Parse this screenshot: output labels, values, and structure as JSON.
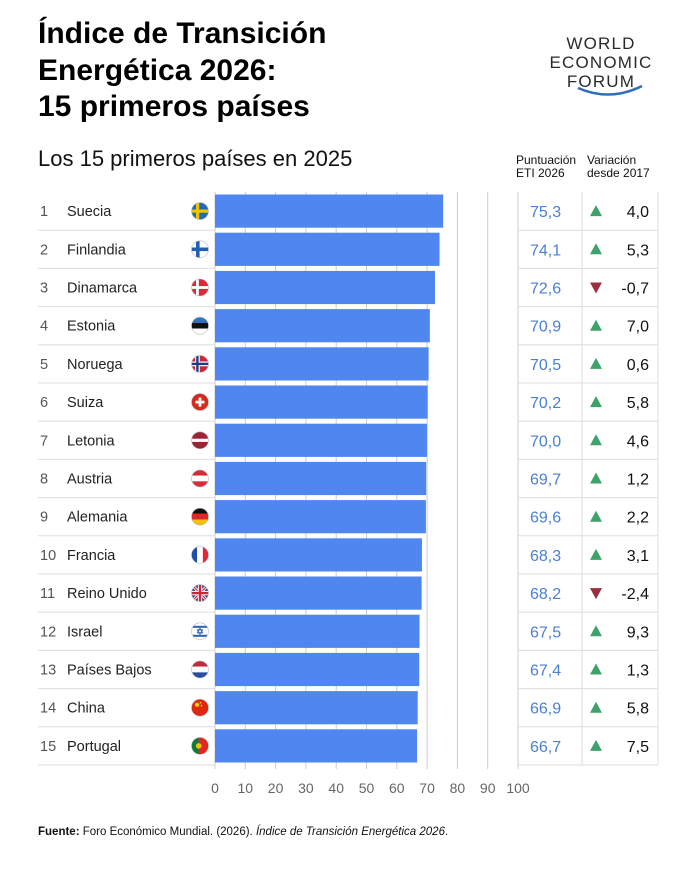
{
  "header": {
    "title_lines": [
      "Índice de Transición",
      "Energética 2026:",
      "15 primeros países"
    ],
    "subtitle": "Los 15 primeros países en 2025",
    "col_score": [
      "Puntuación",
      "ETI 2026"
    ],
    "col_change": [
      "Variación",
      "desde 2017"
    ]
  },
  "logo": {
    "lines": [
      "WORLD",
      "ECONOMIC",
      "FORUM"
    ]
  },
  "footer": {
    "source_label": "Fuente:",
    "source_text": " Foro Económico Mundial. (2026). ",
    "source_title": "Índice de Transición Energética 2026",
    "source_end": "."
  },
  "colors": {
    "bar": "#4f86f0",
    "score_text": "#4a7fd4",
    "up": "#3ea36a",
    "down": "#9a2f3e",
    "grid": "#cccccc"
  },
  "chart_data": {
    "type": "bar",
    "orientation": "horizontal",
    "categories": [
      "Suecia",
      "Finlandia",
      "Dinamarca",
      "Estonia",
      "Noruega",
      "Suiza",
      "Letonia",
      "Austria",
      "Alemania",
      "Francia",
      "Reino Unido",
      "Israel",
      "Países Bajos",
      "China",
      "Portugal"
    ],
    "ranks": [
      "1",
      "2",
      "3",
      "4",
      "5",
      "6",
      "7",
      "8",
      "9",
      "10",
      "11",
      "12",
      "13",
      "14",
      "15"
    ],
    "values": [
      75.3,
      74.1,
      72.6,
      70.9,
      70.5,
      70.2,
      70.0,
      69.7,
      69.6,
      68.3,
      68.2,
      67.5,
      67.4,
      66.9,
      66.7
    ],
    "score_labels": [
      "75,3",
      "74,1",
      "72,6",
      "70,9",
      "70,5",
      "70,2",
      "70,0",
      "69,7",
      "69,6",
      "68,3",
      "68,2",
      "67,5",
      "67,4",
      "66,9",
      "66,7"
    ],
    "change_values": [
      4.0,
      5.3,
      -0.7,
      7.0,
      0.6,
      5.8,
      4.6,
      1.2,
      2.2,
      3.1,
      -2.4,
      9.3,
      1.3,
      5.8,
      7.5
    ],
    "change_labels": [
      "4,0",
      "5,3",
      "-0,7",
      "7,0",
      "0,6",
      "5,8",
      "4,6",
      "1,2",
      "2,2",
      "3,1",
      "-2,4",
      "9,3",
      "1,3",
      "5,8",
      "7,5"
    ],
    "flags": [
      "sweden-flag",
      "finland-flag",
      "denmark-flag",
      "estonia-flag",
      "norway-flag",
      "switzerland-flag",
      "latvia-flag",
      "austria-flag",
      "germany-flag",
      "france-flag",
      "uk-flag",
      "israel-flag",
      "netherlands-flag",
      "china-flag",
      "portugal-flag"
    ],
    "xlim": [
      0,
      100
    ],
    "xticks": [
      0,
      10,
      20,
      30,
      40,
      50,
      60,
      70,
      80,
      90,
      100
    ],
    "grid": true
  }
}
